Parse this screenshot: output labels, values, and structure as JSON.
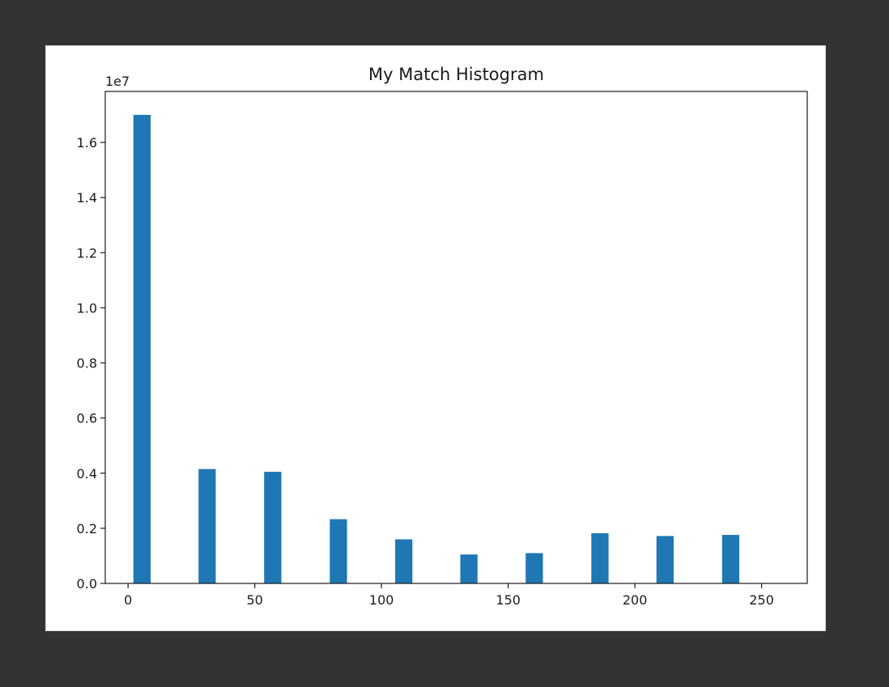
{
  "chart_data": {
    "type": "bar",
    "title": "My Match Histogram",
    "xlabel": "",
    "ylabel": "",
    "y_offset_label": "1e7",
    "xlim": [
      -9,
      268
    ],
    "ylim": [
      0,
      1.785
    ],
    "x_ticks": [
      0,
      50,
      100,
      150,
      200,
      250
    ],
    "x_tick_labels": [
      "0",
      "50",
      "100",
      "150",
      "200",
      "250"
    ],
    "y_ticks": [
      0.0,
      0.2,
      0.4,
      0.6,
      0.8,
      1.0,
      1.2,
      1.4,
      1.6
    ],
    "y_tick_labels": [
      "0.0",
      "0.2",
      "0.4",
      "0.6",
      "0.8",
      "1.0",
      "1.2",
      "1.4",
      "1.6"
    ],
    "bar_width": 6.8,
    "bars": [
      {
        "x": 5.5,
        "value": 1.7
      },
      {
        "x": 31.2,
        "value": 0.415
      },
      {
        "x": 57.1,
        "value": 0.405
      },
      {
        "x": 83.0,
        "value": 0.233
      },
      {
        "x": 108.8,
        "value": 0.16
      },
      {
        "x": 134.5,
        "value": 0.105
      },
      {
        "x": 160.3,
        "value": 0.11
      },
      {
        "x": 186.2,
        "value": 0.182
      },
      {
        "x": 211.9,
        "value": 0.172
      },
      {
        "x": 237.8,
        "value": 0.176
      }
    ],
    "bar_color": "#1f77b4",
    "grid": false,
    "legend": "none"
  }
}
